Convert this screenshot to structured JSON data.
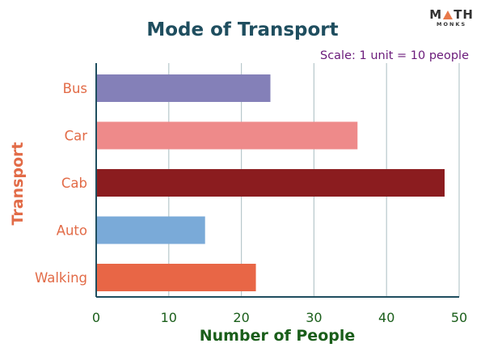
{
  "logo": {
    "text_left": "M",
    "text_right": "TH",
    "subtitle": "MONKS"
  },
  "chart_data": {
    "type": "bar",
    "orientation": "horizontal",
    "title": "Mode of Transport",
    "annotation": "Scale: 1 unit = 10 people",
    "xlabel": "Number of People",
    "ylabel": "Transport",
    "categories": [
      "Bus",
      "Car",
      "Cab",
      "Auto",
      "Walking"
    ],
    "values": [
      24,
      36,
      48,
      15,
      22
    ],
    "xlim": [
      0,
      50
    ],
    "xticks": [
      "0",
      "10",
      "20",
      "30",
      "40",
      "50"
    ],
    "grid": "vertical",
    "colors": {
      "bars": [
        "#8480b8",
        "#ee8a8a",
        "#8b1c1f",
        "#7aaad8",
        "#e86646"
      ],
      "title": "#1f4e5f",
      "category_labels": "#e26b47",
      "ylabel": "#e26b47",
      "xlabel": "#1a5e1a",
      "ticks": "#1a5e1a",
      "annotation": "#6a1a7a",
      "grid": "#b8c8cc",
      "axis": "#1f4e5f"
    }
  }
}
